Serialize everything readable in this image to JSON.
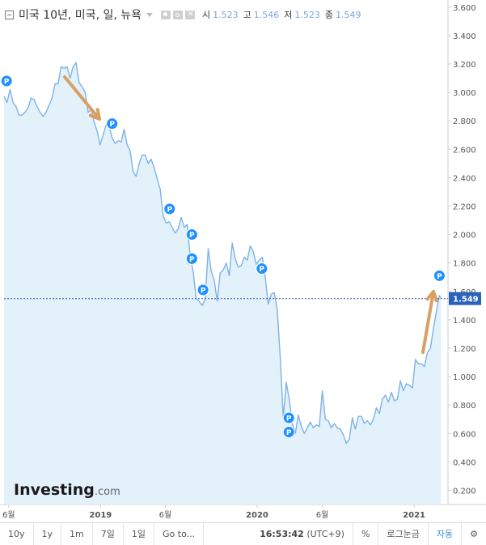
{
  "legend": {
    "title": "미국 10년, 미국, 일, 뉴욕",
    "open_label": "시",
    "open": "1.523",
    "high_label": "고",
    "high": "1.546",
    "low_label": "저",
    "low": "1.523",
    "close_label": "종",
    "close": "1.549"
  },
  "brand": {
    "logo": "Investing",
    "suffix": ".com"
  },
  "price_tag": "1.549",
  "toolbar": {
    "periods": [
      "10y",
      "1y",
      "1m",
      "7일",
      "1일"
    ],
    "goto": "Go to...",
    "time": "16:53:42",
    "timezone": "(UTC+9)",
    "percent": "%",
    "log": "로그눈금",
    "auto": "자동"
  },
  "colors": {
    "line": "#7db3e6",
    "area": "#e3f1fb",
    "marker": "#1e90ff",
    "arrow": "#d9a066",
    "priceline": "#2a4f9e"
  },
  "chart_data": {
    "type": "area",
    "title": "미국 10년, 미국, 일, 뉴욕",
    "xlabel": "",
    "ylabel": "",
    "ylim": [
      0.1,
      3.65
    ],
    "xlim": [
      "2018-05-21",
      "2021-03-21"
    ],
    "x_ticks": [
      {
        "date": "2018-06-01",
        "label": "6월"
      },
      {
        "date": "2019-01-01",
        "label": "2019"
      },
      {
        "date": "2019-06-01",
        "label": "6월"
      },
      {
        "date": "2020-01-01",
        "label": "2020"
      },
      {
        "date": "2020-06-01",
        "label": "6월"
      },
      {
        "date": "2021-01-01",
        "label": "2021"
      }
    ],
    "y_ticks": [
      "0.200",
      "0.400",
      "0.600",
      "0.800",
      "1.000",
      "1.200",
      "1.400",
      "1.600",
      "1.800",
      "2.000",
      "2.200",
      "2.400",
      "2.600",
      "2.800",
      "3.000",
      "3.200",
      "3.400",
      "3.600"
    ],
    "grid": false,
    "series": [
      {
        "points": [
          [
            "2018-05-21",
            2.97
          ],
          [
            "2018-05-28",
            2.93
          ],
          [
            "2018-06-04",
            3.02
          ],
          [
            "2018-06-11",
            2.93
          ],
          [
            "2018-06-18",
            2.9
          ],
          [
            "2018-06-25",
            2.84
          ],
          [
            "2018-07-02",
            2.84
          ],
          [
            "2018-07-09",
            2.86
          ],
          [
            "2018-07-16",
            2.89
          ],
          [
            "2018-07-23",
            2.96
          ],
          [
            "2018-07-30",
            2.95
          ],
          [
            "2018-08-06",
            2.9
          ],
          [
            "2018-08-13",
            2.86
          ],
          [
            "2018-08-20",
            2.83
          ],
          [
            "2018-08-27",
            2.86
          ],
          [
            "2018-09-03",
            2.91
          ],
          [
            "2018-09-10",
            2.96
          ],
          [
            "2018-09-17",
            3.06
          ],
          [
            "2018-09-24",
            3.06
          ],
          [
            "2018-10-01",
            3.18
          ],
          [
            "2018-10-08",
            3.17
          ],
          [
            "2018-10-15",
            3.18
          ],
          [
            "2018-10-22",
            3.1
          ],
          [
            "2018-10-29",
            3.18
          ],
          [
            "2018-11-05",
            3.21
          ],
          [
            "2018-11-12",
            3.07
          ],
          [
            "2018-11-19",
            3.04
          ],
          [
            "2018-11-26",
            3.0
          ],
          [
            "2018-12-03",
            2.86
          ],
          [
            "2018-12-10",
            2.88
          ],
          [
            "2018-12-17",
            2.79
          ],
          [
            "2018-12-24",
            2.73
          ],
          [
            "2018-12-31",
            2.63
          ],
          [
            "2019-01-07",
            2.7
          ],
          [
            "2019-01-14",
            2.77
          ],
          [
            "2019-01-21",
            2.76
          ],
          [
            "2019-01-28",
            2.68
          ],
          [
            "2019-02-04",
            2.64
          ],
          [
            "2019-02-11",
            2.66
          ],
          [
            "2019-02-18",
            2.65
          ],
          [
            "2019-02-25",
            2.74
          ],
          [
            "2019-03-04",
            2.63
          ],
          [
            "2019-03-11",
            2.59
          ],
          [
            "2019-03-18",
            2.44
          ],
          [
            "2019-03-25",
            2.41
          ],
          [
            "2019-04-01",
            2.5
          ],
          [
            "2019-04-08",
            2.56
          ],
          [
            "2019-04-15",
            2.56
          ],
          [
            "2019-04-22",
            2.5
          ],
          [
            "2019-04-29",
            2.53
          ],
          [
            "2019-05-06",
            2.47
          ],
          [
            "2019-05-13",
            2.39
          ],
          [
            "2019-05-20",
            2.32
          ],
          [
            "2019-05-27",
            2.13
          ],
          [
            "2019-06-03",
            2.08
          ],
          [
            "2019-06-10",
            2.09
          ],
          [
            "2019-06-17",
            2.05
          ],
          [
            "2019-06-24",
            2.01
          ],
          [
            "2019-07-01",
            2.04
          ],
          [
            "2019-07-08",
            2.12
          ],
          [
            "2019-07-15",
            2.05
          ],
          [
            "2019-07-22",
            2.07
          ],
          [
            "2019-07-29",
            1.85
          ],
          [
            "2019-08-05",
            1.74
          ],
          [
            "2019-08-12",
            1.55
          ],
          [
            "2019-08-19",
            1.53
          ],
          [
            "2019-08-26",
            1.5
          ],
          [
            "2019-09-02",
            1.55
          ],
          [
            "2019-09-09",
            1.9
          ],
          [
            "2019-09-16",
            1.74
          ],
          [
            "2019-09-23",
            1.68
          ],
          [
            "2019-09-30",
            1.53
          ],
          [
            "2019-10-07",
            1.73
          ],
          [
            "2019-10-14",
            1.75
          ],
          [
            "2019-10-21",
            1.8
          ],
          [
            "2019-10-28",
            1.71
          ],
          [
            "2019-11-04",
            1.94
          ],
          [
            "2019-11-11",
            1.83
          ],
          [
            "2019-11-18",
            1.77
          ],
          [
            "2019-11-25",
            1.78
          ],
          [
            "2019-12-02",
            1.84
          ],
          [
            "2019-12-09",
            1.82
          ],
          [
            "2019-12-16",
            1.92
          ],
          [
            "2019-12-23",
            1.88
          ],
          [
            "2019-12-30",
            1.79
          ],
          [
            "2020-01-06",
            1.82
          ],
          [
            "2020-01-13",
            1.84
          ],
          [
            "2020-01-20",
            1.7
          ],
          [
            "2020-01-27",
            1.51
          ],
          [
            "2020-02-03",
            1.58
          ],
          [
            "2020-02-10",
            1.59
          ],
          [
            "2020-02-17",
            1.47
          ],
          [
            "2020-02-24",
            1.13
          ],
          [
            "2020-03-02",
            0.71
          ],
          [
            "2020-03-09",
            0.96
          ],
          [
            "2020-03-16",
            0.84
          ],
          [
            "2020-03-23",
            0.67
          ],
          [
            "2020-03-30",
            0.6
          ],
          [
            "2020-04-06",
            0.73
          ],
          [
            "2020-04-13",
            0.65
          ],
          [
            "2020-04-20",
            0.6
          ],
          [
            "2020-04-27",
            0.64
          ],
          [
            "2020-05-04",
            0.68
          ],
          [
            "2020-05-11",
            0.64
          ],
          [
            "2020-05-18",
            0.66
          ],
          [
            "2020-05-25",
            0.65
          ],
          [
            "2020-06-01",
            0.9
          ],
          [
            "2020-06-08",
            0.7
          ],
          [
            "2020-06-15",
            0.69
          ],
          [
            "2020-06-22",
            0.64
          ],
          [
            "2020-06-29",
            0.67
          ],
          [
            "2020-07-06",
            0.64
          ],
          [
            "2020-07-13",
            0.63
          ],
          [
            "2020-07-20",
            0.59
          ],
          [
            "2020-07-27",
            0.53
          ],
          [
            "2020-08-03",
            0.56
          ],
          [
            "2020-08-10",
            0.71
          ],
          [
            "2020-08-17",
            0.63
          ],
          [
            "2020-08-24",
            0.72
          ],
          [
            "2020-08-31",
            0.72
          ],
          [
            "2020-09-07",
            0.67
          ],
          [
            "2020-09-14",
            0.69
          ],
          [
            "2020-09-21",
            0.66
          ],
          [
            "2020-09-28",
            0.7
          ],
          [
            "2020-10-05",
            0.78
          ],
          [
            "2020-10-12",
            0.74
          ],
          [
            "2020-10-19",
            0.84
          ],
          [
            "2020-10-26",
            0.87
          ],
          [
            "2020-11-02",
            0.82
          ],
          [
            "2020-11-09",
            0.89
          ],
          [
            "2020-11-16",
            0.83
          ],
          [
            "2020-11-23",
            0.84
          ],
          [
            "2020-11-30",
            0.97
          ],
          [
            "2020-12-07",
            0.9
          ],
          [
            "2020-12-14",
            0.95
          ],
          [
            "2020-12-21",
            0.94
          ],
          [
            "2020-12-28",
            0.92
          ],
          [
            "2021-01-04",
            1.12
          ],
          [
            "2021-01-11",
            1.09
          ],
          [
            "2021-01-18",
            1.09
          ],
          [
            "2021-01-25",
            1.07
          ],
          [
            "2021-02-01",
            1.17
          ],
          [
            "2021-02-08",
            1.2
          ],
          [
            "2021-02-15",
            1.34
          ],
          [
            "2021-02-22",
            1.46
          ],
          [
            "2021-03-01",
            1.57
          ],
          [
            "2021-03-05",
            1.549
          ]
        ]
      }
    ],
    "markers": [
      {
        "date": "2018-05-27",
        "value": 3.08,
        "label": "P"
      },
      {
        "date": "2019-01-28",
        "value": 2.78,
        "label": "P"
      },
      {
        "date": "2019-06-11",
        "value": 2.18,
        "label": "P"
      },
      {
        "date": "2019-08-02",
        "value": 2.0,
        "label": "P"
      },
      {
        "date": "2019-08-02",
        "value": 1.83,
        "label": "P"
      },
      {
        "date": "2019-08-28",
        "value": 1.61,
        "label": "P"
      },
      {
        "date": "2020-01-12",
        "value": 1.76,
        "label": "P"
      },
      {
        "date": "2020-03-15",
        "value": 0.71,
        "label": "P"
      },
      {
        "date": "2020-03-15",
        "value": 0.61,
        "label": "P"
      },
      {
        "date": "2021-03-01",
        "value": 1.71,
        "label": "P"
      }
    ],
    "price_line": 1.549
  }
}
